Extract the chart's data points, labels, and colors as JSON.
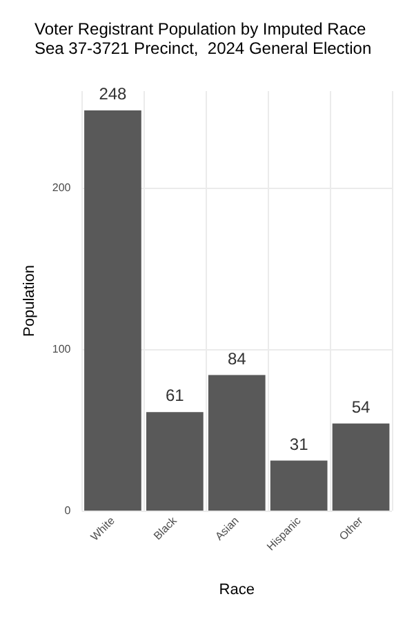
{
  "chart_data": {
    "type": "bar",
    "title": "Voter Registrant Population by Imputed Race",
    "subtitle": "Sea 37-3721 Precinct,  2024 General Election",
    "xlabel": "Race",
    "ylabel": "Population",
    "categories": [
      "White",
      "Black",
      "Asian",
      "Hispanic",
      "Other"
    ],
    "values": [
      248,
      61,
      84,
      31,
      54
    ],
    "color": "#595959",
    "data_labels": true,
    "ylim": [
      0,
      260
    ],
    "yticks": [
      0,
      100,
      200
    ],
    "grid": true
  }
}
